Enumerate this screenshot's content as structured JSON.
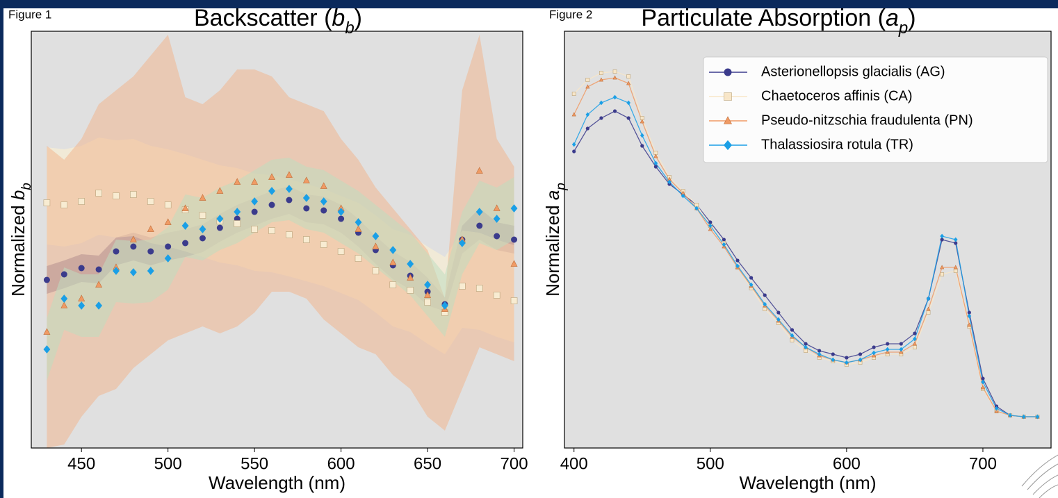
{
  "chart_data": [
    {
      "type": "line",
      "figure_label": "Figure 1",
      "title": [
        "Backscatter (",
        "b",
        "b",
        ")"
      ],
      "x_label": "Wavelength (nm)",
      "y_label": [
        "Normalized ",
        "b",
        "b"
      ],
      "xlim": [
        421,
        705
      ],
      "xticks": [
        450,
        500,
        550,
        600,
        650,
        700
      ],
      "ylim": [
        0,
        600
      ],
      "connect": false,
      "background": "#e0e0e0",
      "x": [
        430,
        440,
        450,
        460,
        470,
        480,
        490,
        500,
        510,
        520,
        530,
        540,
        550,
        560,
        570,
        580,
        590,
        600,
        610,
        620,
        630,
        640,
        650,
        660,
        670,
        680,
        690,
        700
      ],
      "series": [
        {
          "marker": "circle",
          "color": "#3b3b8c",
          "band_color": "#6a5f8c",
          "values": [
            242,
            250,
            259,
            257,
            283,
            290,
            283,
            290,
            295,
            302,
            317,
            330,
            340,
            350,
            357,
            345,
            342,
            330,
            310,
            285,
            263,
            248,
            225,
            207,
            300,
            320,
            305,
            300
          ],
          "lower": [
            222,
            230,
            239,
            237,
            263,
            270,
            263,
            270,
            275,
            282,
            297,
            310,
            320,
            330,
            337,
            325,
            322,
            310,
            290,
            265,
            243,
            228,
            205,
            197,
            280,
            300,
            285,
            280
          ],
          "upper": [
            262,
            270,
            279,
            277,
            303,
            310,
            303,
            310,
            315,
            322,
            337,
            350,
            360,
            370,
            377,
            365,
            362,
            350,
            330,
            305,
            283,
            268,
            245,
            217,
            320,
            345,
            325,
            320
          ]
        },
        {
          "marker": "square",
          "color": "#f8ecd2",
          "band_color": "#fff2cf",
          "values": [
            353,
            350,
            355,
            367,
            363,
            365,
            355,
            350,
            343,
            335,
            327,
            323,
            315,
            313,
            307,
            300,
            293,
            283,
            273,
            255,
            235,
            227,
            210,
            195,
            233,
            230,
            220,
            212
          ],
          "lower": [
            293,
            290,
            295,
            307,
            303,
            305,
            295,
            290,
            283,
            275,
            267,
            263,
            255,
            253,
            247,
            240,
            233,
            223,
            213,
            195,
            175,
            167,
            150,
            135,
            173,
            170,
            160,
            152
          ],
          "upper": [
            433,
            430,
            435,
            447,
            443,
            445,
            435,
            430,
            423,
            415,
            407,
            403,
            395,
            393,
            387,
            380,
            373,
            363,
            353,
            335,
            315,
            307,
            290,
            275,
            313,
            310,
            300,
            292
          ]
        },
        {
          "marker": "triangle",
          "color": "#f09a64",
          "band_color": "#f1b690",
          "values": [
            167,
            205,
            215,
            235,
            260,
            300,
            315,
            325,
            345,
            360,
            370,
            383,
            383,
            390,
            393,
            385,
            377,
            345,
            315,
            290,
            267,
            245,
            220,
            200,
            300,
            399,
            345,
            265
          ],
          "lower": [
            0,
            5,
            45,
            75,
            85,
            115,
            135,
            155,
            165,
            175,
            165,
            175,
            195,
            225,
            225,
            215,
            185,
            165,
            145,
            135,
            105,
            85,
            45,
            25,
            85,
            145,
            135,
            125
          ],
          "upper": [
            435,
            415,
            445,
            495,
            515,
            535,
            565,
            595,
            505,
            495,
            515,
            545,
            545,
            535,
            505,
            495,
            485,
            445,
            415,
            375,
            345,
            315,
            285,
            215,
            515,
            595,
            445,
            405
          ]
        },
        {
          "marker": "diamond",
          "color": "#1a9fe6",
          "band_color": "#bfdcc0",
          "values": [
            142,
            215,
            205,
            205,
            255,
            253,
            255,
            273,
            320,
            315,
            330,
            340,
            355,
            370,
            373,
            360,
            355,
            340,
            325,
            305,
            285,
            265,
            235,
            205,
            295,
            340,
            330,
            345
          ],
          "lower": [
            97,
            170,
            160,
            160,
            210,
            208,
            210,
            228,
            275,
            270,
            285,
            295,
            310,
            325,
            328,
            315,
            310,
            295,
            280,
            260,
            240,
            220,
            190,
            160,
            250,
            295,
            285,
            300
          ],
          "upper": [
            187,
            260,
            250,
            250,
            300,
            298,
            300,
            318,
            365,
            360,
            375,
            385,
            400,
            415,
            418,
            405,
            400,
            385,
            370,
            350,
            330,
            310,
            280,
            250,
            340,
            385,
            375,
            390
          ]
        }
      ]
    },
    {
      "type": "line",
      "figure_label": "Figure 2",
      "title": [
        "Particulate Absorption (",
        "a",
        "p",
        ")"
      ],
      "x_label": "Wavelength (nm)",
      "y_label": [
        "Normalized ",
        "a",
        "p"
      ],
      "xlim": [
        393,
        750
      ],
      "xticks": [
        400,
        500,
        600,
        700
      ],
      "ylim": [
        0,
        600
      ],
      "connect": true,
      "background": "#e0e0e0",
      "legend": "upper right",
      "x": [
        400,
        410,
        420,
        430,
        440,
        450,
        460,
        470,
        480,
        490,
        500,
        510,
        520,
        530,
        540,
        550,
        560,
        570,
        580,
        590,
        600,
        610,
        620,
        630,
        640,
        650,
        660,
        670,
        680,
        690,
        700,
        710,
        720,
        730,
        740
      ],
      "series": [
        {
          "name": "Asterionellopsis glacialis (AG)",
          "marker": "circle",
          "color": "#3b3b8c",
          "values": [
            427,
            460,
            475,
            485,
            475,
            435,
            405,
            380,
            365,
            350,
            325,
            300,
            270,
            245,
            220,
            195,
            170,
            150,
            140,
            135,
            130,
            135,
            145,
            150,
            150,
            165,
            215,
            300,
            295,
            195,
            100,
            60,
            47,
            45,
            45
          ]
        },
        {
          "name": "Chaetoceros affinis (CA)",
          "marker": "square",
          "color": "#f8e6c8",
          "values": [
            510,
            530,
            540,
            542,
            535,
            475,
            425,
            390,
            370,
            350,
            320,
            295,
            260,
            230,
            200,
            180,
            155,
            140,
            130,
            125,
            120,
            123,
            130,
            135,
            135,
            145,
            195,
            250,
            255,
            175,
            85,
            53,
            47,
            45,
            45
          ]
        },
        {
          "name": "Pseudo-nitzschia fraudulenta (PN)",
          "marker": "triangle",
          "color": "#f09a64",
          "values": [
            480,
            520,
            530,
            533,
            525,
            470,
            420,
            387,
            367,
            345,
            315,
            290,
            260,
            233,
            205,
            183,
            160,
            145,
            133,
            127,
            123,
            127,
            133,
            138,
            138,
            150,
            200,
            260,
            260,
            177,
            87,
            53,
            47,
            45,
            45
          ]
        },
        {
          "name": "Thalassiosira rotula (TR)",
          "marker": "diamond",
          "color": "#1a9fe6",
          "values": [
            437,
            480,
            497,
            505,
            497,
            450,
            410,
            383,
            363,
            345,
            320,
            293,
            262,
            235,
            207,
            185,
            162,
            145,
            135,
            127,
            123,
            127,
            137,
            142,
            142,
            157,
            215,
            305,
            300,
            190,
            95,
            57,
            47,
            45,
            45
          ]
        }
      ]
    }
  ]
}
